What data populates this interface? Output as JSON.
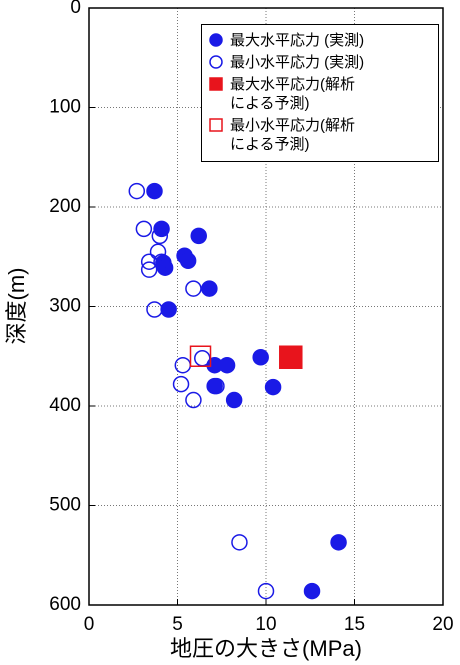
{
  "chart_data": {
    "type": "scatter",
    "xlabel": "地圧の大きさ(MPa)",
    "ylabel": "深度(m)",
    "xlim": [
      0,
      20
    ],
    "xticks": [
      0,
      5,
      10,
      15,
      20
    ],
    "ylim": [
      0,
      600
    ],
    "yticks": [
      0,
      100,
      200,
      300,
      400,
      500,
      600
    ],
    "y_inverted": true,
    "grid": true,
    "legend": "upper right",
    "series": [
      {
        "name": "最大水平応力 (実測)",
        "color": "#1a1ae6",
        "marker": "circle",
        "filled": true,
        "x": [
          3.7,
          4.1,
          6.2,
          5.4,
          5.6,
          4.2,
          4.3,
          4.5,
          6.8,
          9.7,
          7.8,
          7.1,
          7.1,
          8.2,
          10.4,
          14.1,
          12.6
        ],
        "y": [
          184,
          222,
          229,
          249,
          254,
          256,
          261,
          303,
          282,
          351,
          359,
          359,
          380,
          394,
          381,
          537,
          586
        ]
      },
      {
        "name": "最小水平応力 (実測)",
        "color": "#1a1ae6",
        "marker": "circle",
        "filled": false,
        "x": [
          2.7,
          3.1,
          3.9,
          4.0,
          3.4,
          3.4,
          4.1,
          3.7,
          5.9,
          5.3,
          5.2,
          6.4,
          7.2,
          5.9,
          8.5,
          10.0
        ],
        "y": [
          184,
          222,
          245,
          229,
          255,
          263,
          255,
          303,
          282,
          359,
          378,
          352,
          380,
          394,
          537,
          586
        ]
      },
      {
        "name": "最大水平応力(解析\nによる予測)",
        "color": "#e8141c",
        "marker": "square",
        "filled": true,
        "x": [
          11.4
        ],
        "y": [
          351
        ]
      },
      {
        "name": "最小水平応力(解析\nによる予測)",
        "color": "#e8141c",
        "marker": "square",
        "filled": false,
        "x": [
          6.3
        ],
        "y": [
          350
        ]
      }
    ]
  }
}
